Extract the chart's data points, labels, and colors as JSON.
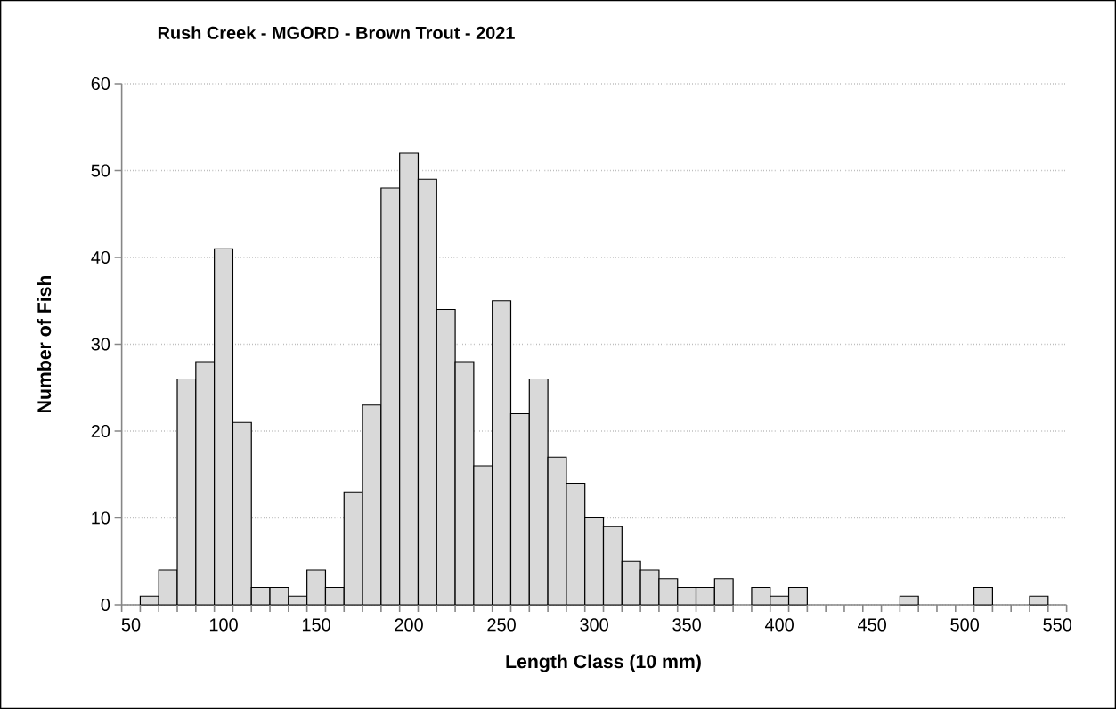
{
  "chart_data": {
    "type": "bar",
    "title": "Rush Creek - MGORD - Brown Trout - 2021",
    "xlabel": "Length Class (10 mm)",
    "ylabel": "Number of Fish",
    "categories": [
      "50",
      null,
      null,
      null,
      null,
      "100",
      null,
      null,
      null,
      null,
      "150",
      null,
      null,
      null,
      null,
      "200",
      null,
      null,
      null,
      null,
      "250",
      null,
      null,
      null,
      null,
      "300",
      null,
      null,
      null,
      null,
      "350",
      null,
      null,
      null,
      null,
      "400",
      null,
      null,
      null,
      null,
      "450",
      null,
      null,
      null,
      null,
      "500",
      null,
      null,
      null,
      null,
      "550"
    ],
    "values": [
      0,
      1,
      4,
      26,
      28,
      41,
      21,
      2,
      2,
      1,
      4,
      2,
      13,
      23,
      48,
      52,
      49,
      34,
      28,
      16,
      35,
      22,
      26,
      17,
      14,
      10,
      9,
      5,
      4,
      3,
      2,
      2,
      3,
      0,
      2,
      1,
      2,
      0,
      0,
      0,
      0,
      0,
      1,
      0,
      0,
      0,
      2,
      0,
      0,
      1,
      0
    ],
    "color": "#d9d9d9",
    "ylim": [
      0,
      60
    ],
    "yticks": [
      0,
      10,
      20,
      30,
      40,
      50,
      60
    ],
    "grid": "y"
  }
}
